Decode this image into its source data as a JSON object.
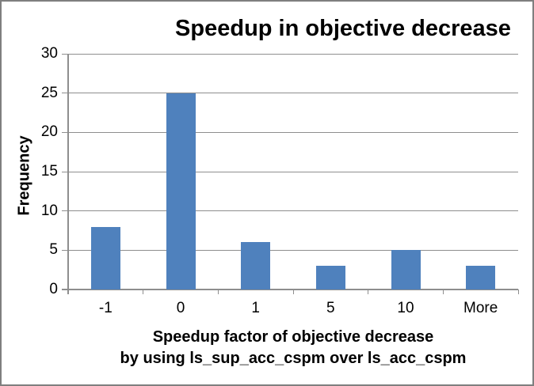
{
  "chart_data": {
    "type": "bar",
    "title": "Speedup in objective decrease",
    "series_name": "Frequency",
    "categories": [
      "-1",
      "0",
      "1",
      "5",
      "10",
      "More"
    ],
    "values": [
      8,
      25,
      6,
      3,
      5,
      3
    ],
    "xlabel_line1": "Speedup factor of objective decrease",
    "xlabel_line2": "by using ls_sup_acc_cspm over ls_acc_cspm",
    "ylabel": "Frequency",
    "ylim": [
      0,
      30
    ],
    "yticks": [
      0,
      5,
      10,
      15,
      20,
      25,
      30
    ],
    "grid": true,
    "legend": "none",
    "colors": {
      "bar": "#4F81BD",
      "gridline": "#8E8E8E",
      "axis": "#8E8E8E",
      "frame_border": "#7F7F7F",
      "text": "#000000"
    }
  }
}
